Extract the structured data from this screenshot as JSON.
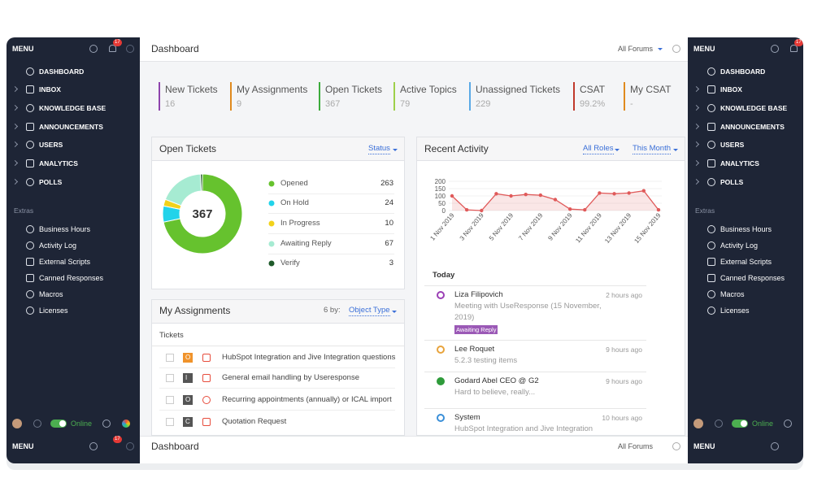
{
  "sidebar": {
    "menu": "MENU",
    "badge": "17",
    "nav": [
      "DASHBOARD",
      "INBOX",
      "KNOWLEDGE BASE",
      "ANNOUNCEMENTS",
      "USERS",
      "ANALYTICS",
      "POLLS"
    ],
    "extras_title": "Extras",
    "extras": [
      "Business Hours",
      "Activity Log",
      "External Scripts",
      "Canned Responses",
      "Macros",
      "Licenses"
    ],
    "status": "Online"
  },
  "header": {
    "title": "Dashboard",
    "forums": "All Forums"
  },
  "stats": [
    {
      "label": "New Tickets",
      "value": 16,
      "color": "#8e44ad"
    },
    {
      "label": "My Assignments",
      "value": 9,
      "color": "#e08a1e"
    },
    {
      "label": "Open Tickets",
      "value": 367,
      "color": "#3cab3c"
    },
    {
      "label": "Active Topics",
      "value": 79,
      "color": "#9ed04a"
    },
    {
      "label": "Unassigned Tickets",
      "value": 229,
      "color": "#5aa9e6"
    },
    {
      "label": "CSAT",
      "value": "99.2%",
      "color": "#c0392b"
    },
    {
      "label": "My CSAT",
      "value": "-",
      "color": "#e08a1e"
    }
  ],
  "open_tickets": {
    "title": "Open Tickets",
    "filter": "Status",
    "center_label": 367
  },
  "assignments": {
    "title": "My Assignments",
    "count": "6 by:",
    "sort": "Object Type",
    "column": "Tickets",
    "rows": [
      {
        "type": "O",
        "title": "HubSpot Integration and Jive Integration questions"
      },
      {
        "type": "I",
        "title": "General email handling by Useresponse"
      },
      {
        "type": "O",
        "title": "Recurring appointments (annually) or ICAL import"
      },
      {
        "type": "C",
        "title": "Quotation Request"
      }
    ]
  },
  "recent_activity": {
    "title": "Recent Activity",
    "roles": "All Roles",
    "period": "This Month",
    "today": "Today",
    "items": [
      {
        "name": "Liza Filipovich",
        "time": "2 hours ago",
        "text": "Meeting with UseResponse (15 November, 2019)",
        "tag": "Awaiting Reply",
        "color": "#9b3fb5"
      },
      {
        "name": "Lee Roquet",
        "time": "9 hours ago",
        "text": "5.2.3 testing items",
        "color": "#e8a33c"
      },
      {
        "name": "Godard Abel CEO @ G2",
        "time": "9 hours ago",
        "text": "Hard to believe, really...",
        "color": "#2e9b3a"
      },
      {
        "name": "System",
        "time": "10 hours ago",
        "text": "HubSpot Integration and Jive Integration",
        "color": "#3a8fd8"
      }
    ]
  },
  "chart_data": [
    {
      "type": "pie",
      "categories": [
        "Opened",
        "On Hold",
        "In Progress",
        "Awaiting Reply",
        "Verify"
      ],
      "values": [
        263,
        24,
        10,
        67,
        3
      ],
      "colors": [
        "#66c22e",
        "#22d3ea",
        "#f2d21a",
        "#a6ebd2",
        "#1f5a2a"
      ]
    },
    {
      "type": "line",
      "color": "#e05a5a",
      "categories": [
        "1 Nov 2019",
        null,
        "3 Nov 2019",
        null,
        "5 Nov 2019",
        null,
        "7 Nov 2019",
        null,
        "9 Nov 2019",
        null,
        "11 Nov 2019",
        null,
        "13 Nov 2019",
        null,
        "15 Nov 2019"
      ],
      "values": [
        100,
        5,
        0,
        115,
        100,
        110,
        105,
        75,
        10,
        5,
        120,
        115,
        120,
        135,
        5
      ],
      "ylim": [
        0,
        200
      ],
      "yticks": [
        0,
        50,
        100,
        150,
        200
      ]
    }
  ]
}
